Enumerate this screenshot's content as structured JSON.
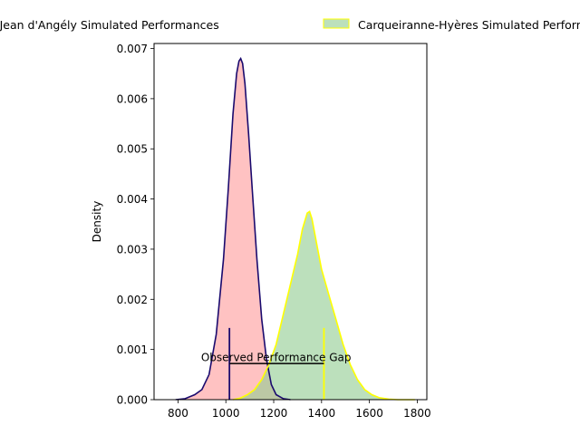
{
  "chart_data": {
    "type": "area",
    "xlabel": "",
    "ylabel": "Density",
    "xlim": [
      700,
      1840
    ],
    "ylim": [
      0,
      0.0071
    ],
    "xticks": [
      {
        "value": 800,
        "label": "800"
      },
      {
        "value": 1000,
        "label": "1000"
      },
      {
        "value": 1200,
        "label": "1200"
      },
      {
        "value": 1400,
        "label": "1400"
      },
      {
        "value": 1600,
        "label": "1600"
      },
      {
        "value": 1800,
        "label": "1800"
      }
    ],
    "yticks": [
      {
        "value": 0,
        "label": "0.000"
      },
      {
        "value": 0.001,
        "label": "0.001"
      },
      {
        "value": 0.002,
        "label": "0.002"
      },
      {
        "value": 0.003,
        "label": "0.003"
      },
      {
        "value": 0.004,
        "label": "0.004"
      },
      {
        "value": 0.005,
        "label": "0.005"
      },
      {
        "value": 0.006,
        "label": "0.006"
      },
      {
        "value": 0.007,
        "label": "0.007"
      }
    ],
    "legend_position": "top (outside plot)",
    "grid": false,
    "series": [
      {
        "name": "Cognac Saint Jean d'Angély Simulated Performances",
        "fill": "#ff9999",
        "line": "#1a0a6e",
        "x": [
          790,
          830,
          870,
          900,
          930,
          960,
          990,
          1010,
          1030,
          1045,
          1055,
          1062,
          1070,
          1080,
          1095,
          1110,
          1130,
          1150,
          1170,
          1190,
          1210,
          1240,
          1270
        ],
        "y": [
          0.0,
          2e-05,
          0.0001,
          0.0002,
          0.0005,
          0.0013,
          0.0028,
          0.0042,
          0.0057,
          0.0065,
          0.00675,
          0.0068,
          0.0067,
          0.0063,
          0.0053,
          0.0042,
          0.0028,
          0.0016,
          0.0008,
          0.0003,
          0.0001,
          2e-05,
          0.0
        ]
      },
      {
        "name": "Carqueiranne-Hyères Simulated Performances",
        "fill": "#8fcc8f",
        "line": "#ffff00",
        "x": [
          1030,
          1060,
          1090,
          1120,
          1150,
          1180,
          1210,
          1240,
          1270,
          1300,
          1320,
          1340,
          1350,
          1360,
          1380,
          1400,
          1430,
          1460,
          1490,
          1520,
          1550,
          1580,
          1610,
          1640,
          1680,
          1720,
          1760,
          1790
        ],
        "y": [
          0.0,
          3e-05,
          0.0001,
          0.0002,
          0.0004,
          0.0007,
          0.0011,
          0.0017,
          0.0023,
          0.0029,
          0.0034,
          0.00372,
          0.00375,
          0.0036,
          0.0031,
          0.0026,
          0.0021,
          0.0016,
          0.0011,
          0.0007,
          0.0004,
          0.0002,
          0.0001,
          4e-05,
          1e-05,
          0.0,
          0.0,
          0.0
        ]
      }
    ],
    "annotations": [
      {
        "text": "Observed Performance Gap",
        "x": 1210,
        "y": 0.00075,
        "x_start": 1015,
        "x_end": 1410,
        "y_line": 0.00072,
        "marker_start": {
          "x": 1015,
          "y_top": 0.00143,
          "color": "#1a0a6e"
        },
        "marker_end": {
          "x": 1410,
          "y_top": 0.00143,
          "color": "#ffff00"
        }
      }
    ]
  }
}
